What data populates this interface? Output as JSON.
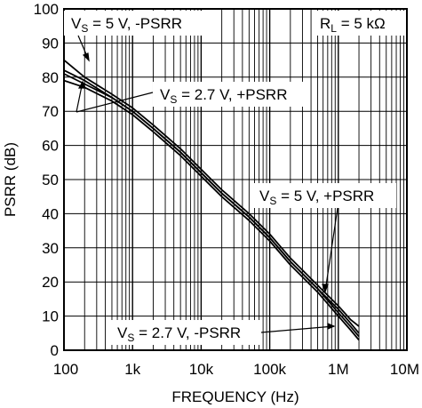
{
  "chart_data": {
    "type": "line",
    "title": "",
    "xlabel": "FREQUENCY (Hz)",
    "ylabel": "PSRR (dB)",
    "xscale": "log",
    "xlim": [
      100,
      10000000
    ],
    "ylim": [
      0,
      100
    ],
    "grid": true,
    "x_tick_labels": [
      "100",
      "1k",
      "10k",
      "100k",
      "1M",
      "10M"
    ],
    "y_tick_labels": [
      "0",
      "10",
      "20",
      "30",
      "40",
      "50",
      "60",
      "70",
      "80",
      "90",
      "100"
    ],
    "series": [
      {
        "name": "VS = 5 V, -PSRR",
        "x": [
          100,
          200,
          500,
          1000,
          2000,
          5000,
          10000,
          20000,
          50000,
          100000,
          200000,
          500000,
          1000000,
          1500000,
          2000000
        ],
        "y": [
          85,
          80,
          75,
          71,
          66,
          59,
          53,
          47,
          40,
          34,
          27,
          19,
          13,
          9,
          7
        ]
      },
      {
        "name": "VS = 2.7 V, +PSRR",
        "x": [
          100,
          200,
          500,
          1000,
          2000,
          5000,
          10000,
          20000,
          50000,
          100000,
          200000,
          500000,
          1000000,
          1500000,
          2000000
        ],
        "y": [
          82,
          79,
          74,
          70,
          65,
          58,
          52,
          46,
          39,
          33,
          26,
          18,
          12,
          8,
          5
        ]
      },
      {
        "name": "VS = 5 V, +PSRR",
        "x": [
          100,
          200,
          500,
          1000,
          2000,
          5000,
          10000,
          20000,
          50000,
          100000,
          200000,
          500000,
          1000000,
          1500000,
          2000000
        ],
        "y": [
          81,
          78,
          74,
          70,
          65,
          58,
          52,
          46,
          39,
          33,
          26,
          18,
          11,
          7,
          4
        ]
      },
      {
        "name": "VS = 2.7 V, -PSRR",
        "x": [
          100,
          200,
          500,
          1000,
          2000,
          5000,
          10000,
          20000,
          50000,
          100000,
          200000,
          500000,
          1000000,
          1500000,
          2000000
        ],
        "y": [
          79,
          77,
          73,
          69,
          64,
          57,
          51,
          45,
          38,
          32,
          25,
          17,
          10,
          6,
          3
        ]
      }
    ],
    "annotations": {
      "vs5_minus": {
        "v": "V",
        "sub": "S",
        "rest": " = 5 V, -PSRR"
      },
      "vs27_plus": {
        "v": "V",
        "sub": "S",
        "rest": " = 2.7 V, +PSRR"
      },
      "vs5_plus": {
        "v": "V",
        "sub": "S",
        "rest": " = 5 V, +PSRR"
      },
      "vs27_minus": {
        "v": "V",
        "sub": "S",
        "rest": " = 2.7 V, -PSRR"
      },
      "rl": {
        "v": "R",
        "sub": "L",
        "rest": " = 5 kΩ"
      }
    }
  }
}
